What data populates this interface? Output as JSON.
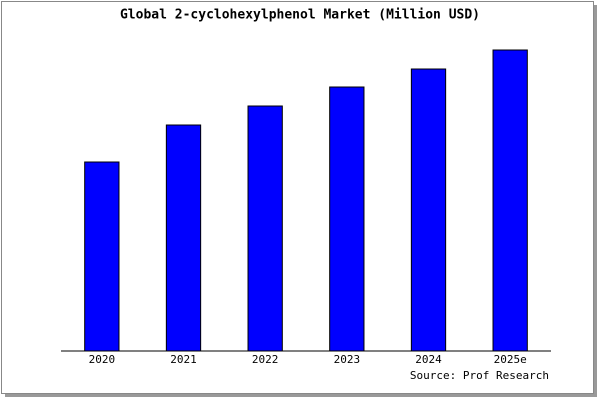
{
  "chart_data": {
    "type": "bar",
    "title": "Global 2-cyclohexylphenol Market (Million USD)",
    "categories": [
      "2020",
      "2021",
      "2022",
      "2023",
      "2024",
      "2025e"
    ],
    "values": [
      189,
      226,
      245,
      264,
      282,
      301
    ],
    "color": "#0000ff",
    "ylim": [
      0,
      311
    ],
    "source": "Source: Prof Research"
  }
}
